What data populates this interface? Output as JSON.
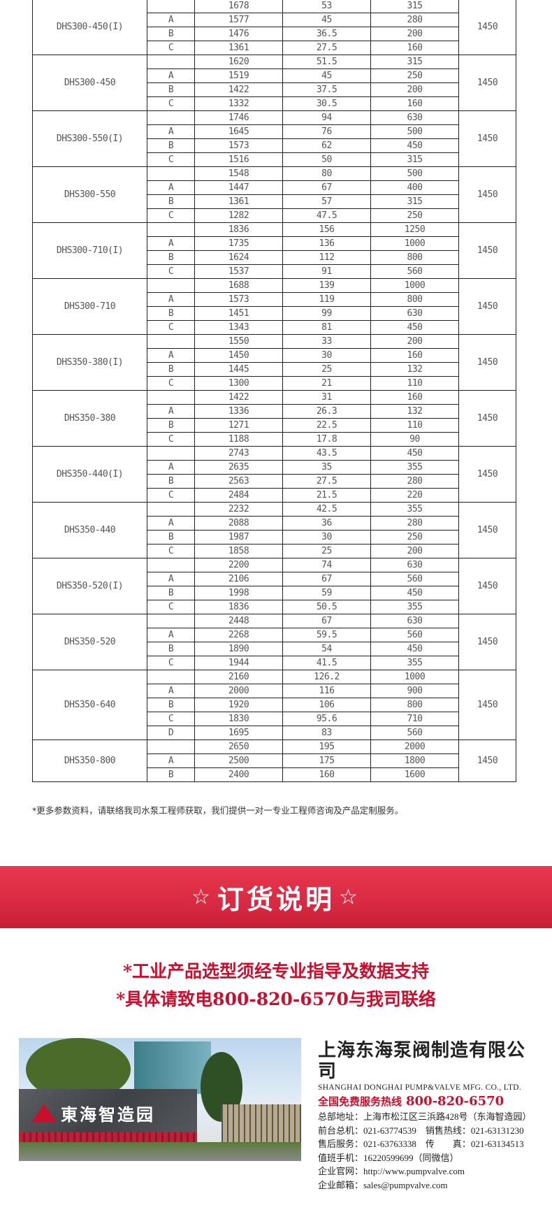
{
  "table": {
    "groups": [
      {
        "model": "DHS300-450(I)",
        "speed": "1450",
        "rows": [
          [
            "",
            "1678",
            "53",
            "315"
          ],
          [
            "A",
            "1577",
            "45",
            "280"
          ],
          [
            "B",
            "1476",
            "36.5",
            "200"
          ],
          [
            "C",
            "1361",
            "27.5",
            "160"
          ]
        ]
      },
      {
        "model": "DHS300-450",
        "speed": "1450",
        "rows": [
          [
            "",
            "1620",
            "51.5",
            "315"
          ],
          [
            "A",
            "1519",
            "45",
            "250"
          ],
          [
            "B",
            "1422",
            "37.5",
            "200"
          ],
          [
            "C",
            "1332",
            "30.5",
            "160"
          ]
        ]
      },
      {
        "model": "DHS300-550(I)",
        "speed": "1450",
        "rows": [
          [
            "",
            "1746",
            "94",
            "630"
          ],
          [
            "A",
            "1645",
            "76",
            "500"
          ],
          [
            "B",
            "1573",
            "62",
            "450"
          ],
          [
            "C",
            "1516",
            "50",
            "315"
          ]
        ]
      },
      {
        "model": "DHS300-550",
        "speed": "1450",
        "rows": [
          [
            "",
            "1548",
            "80",
            "500"
          ],
          [
            "A",
            "1447",
            "67",
            "400"
          ],
          [
            "B",
            "1361",
            "57",
            "315"
          ],
          [
            "C",
            "1282",
            "47.5",
            "250"
          ]
        ]
      },
      {
        "model": "DHS300-710(I)",
        "speed": "1450",
        "rows": [
          [
            "",
            "1836",
            "156",
            "1250"
          ],
          [
            "A",
            "1735",
            "136",
            "1000"
          ],
          [
            "B",
            "1624",
            "112",
            "800"
          ],
          [
            "C",
            "1537",
            "91",
            "560"
          ]
        ]
      },
      {
        "model": "DHS300-710",
        "speed": "1450",
        "rows": [
          [
            "",
            "1688",
            "139",
            "1000"
          ],
          [
            "A",
            "1573",
            "119",
            "800"
          ],
          [
            "B",
            "1451",
            "99",
            "630"
          ],
          [
            "C",
            "1343",
            "81",
            "450"
          ]
        ]
      },
      {
        "model": "DHS350-380(I)",
        "speed": "1450",
        "rows": [
          [
            "",
            "1550",
            "33",
            "200"
          ],
          [
            "A",
            "1450",
            "30",
            "160"
          ],
          [
            "B",
            "1445",
            "25",
            "132"
          ],
          [
            "C",
            "1300",
            "21",
            "110"
          ]
        ]
      },
      {
        "model": "DHS350-380",
        "speed": "1450",
        "rows": [
          [
            "",
            "1422",
            "31",
            "160"
          ],
          [
            "A",
            "1336",
            "26.3",
            "132"
          ],
          [
            "B",
            "1271",
            "22.5",
            "110"
          ],
          [
            "C",
            "1188",
            "17.8",
            "90"
          ]
        ]
      },
      {
        "model": "DHS350-440(I)",
        "speed": "1450",
        "rows": [
          [
            "",
            "2743",
            "43.5",
            "450"
          ],
          [
            "A",
            "2635",
            "35",
            "355"
          ],
          [
            "B",
            "2563",
            "27.5",
            "280"
          ],
          [
            "C",
            "2484",
            "21.5",
            "220"
          ]
        ]
      },
      {
        "model": "DHS350-440",
        "speed": "1450",
        "rows": [
          [
            "",
            "2232",
            "42.5",
            "355"
          ],
          [
            "A",
            "2088",
            "36",
            "280"
          ],
          [
            "B",
            "1987",
            "30",
            "250"
          ],
          [
            "C",
            "1858",
            "25",
            "200"
          ]
        ]
      },
      {
        "model": "DHS350-520(I)",
        "speed": "1450",
        "rows": [
          [
            "",
            "2200",
            "74",
            "630"
          ],
          [
            "A",
            "2106",
            "67",
            "560"
          ],
          [
            "B",
            "1998",
            "59",
            "450"
          ],
          [
            "C",
            "1836",
            "50.5",
            "355"
          ]
        ]
      },
      {
        "model": "DHS350-520",
        "speed": "1450",
        "rows": [
          [
            "",
            "2448",
            "67",
            "630"
          ],
          [
            "A",
            "2268",
            "59.5",
            "560"
          ],
          [
            "B",
            "1890",
            "54",
            "450"
          ],
          [
            "C",
            "1944",
            "41.5",
            "355"
          ]
        ]
      },
      {
        "model": "DHS350-640",
        "speed": "1450",
        "rows": [
          [
            "",
            "2160",
            "126.2",
            "1000"
          ],
          [
            "A",
            "2000",
            "116",
            "900"
          ],
          [
            "B",
            "1920",
            "106",
            "800"
          ],
          [
            "C",
            "1830",
            "95.6",
            "710"
          ],
          [
            "D",
            "1695",
            "83",
            "560"
          ]
        ]
      },
      {
        "model": "DHS350-800",
        "speed": "1450",
        "rows": [
          [
            "",
            "2650",
            "195",
            "2000"
          ],
          [
            "A",
            "2500",
            "175",
            "1800"
          ],
          [
            "B",
            "2400",
            "160",
            "1600"
          ]
        ]
      }
    ]
  },
  "note": "*更多参数资料，请联络我司水泵工程师获取，我们提供一对一专业工程师咨询及产品定制服务。",
  "banner": {
    "star": "☆",
    "title": "订货说明",
    "color": "#d92a43"
  },
  "order_lines": [
    "*工业产品选型须经专业指导及数据支持",
    "*具体请致电800-820-6570与我司联络"
  ],
  "photo": {
    "sign": "東海智造园"
  },
  "company": {
    "name": "上海东海泵阀制造有限公司",
    "english": "SHANGHAI DONGHAI PUMP&VALVE MFG. CO., LTD.",
    "hotline_label": "全国免费服务热线",
    "hotline": "800-820-6570",
    "lines": [
      "总部地址：上海市松江区三浜路428号（东海智造园）",
      "前台总机：021-63774539　销售热线：021-63131230",
      "售后服务：021-63763338　传　　真：021-63134513",
      "值班手机：16220599699（同微信）",
      "企业官网：http://www.pumpvalve.com",
      "企业邮箱：sales@pumpvalve.com"
    ],
    "accent": "#c8102e"
  }
}
